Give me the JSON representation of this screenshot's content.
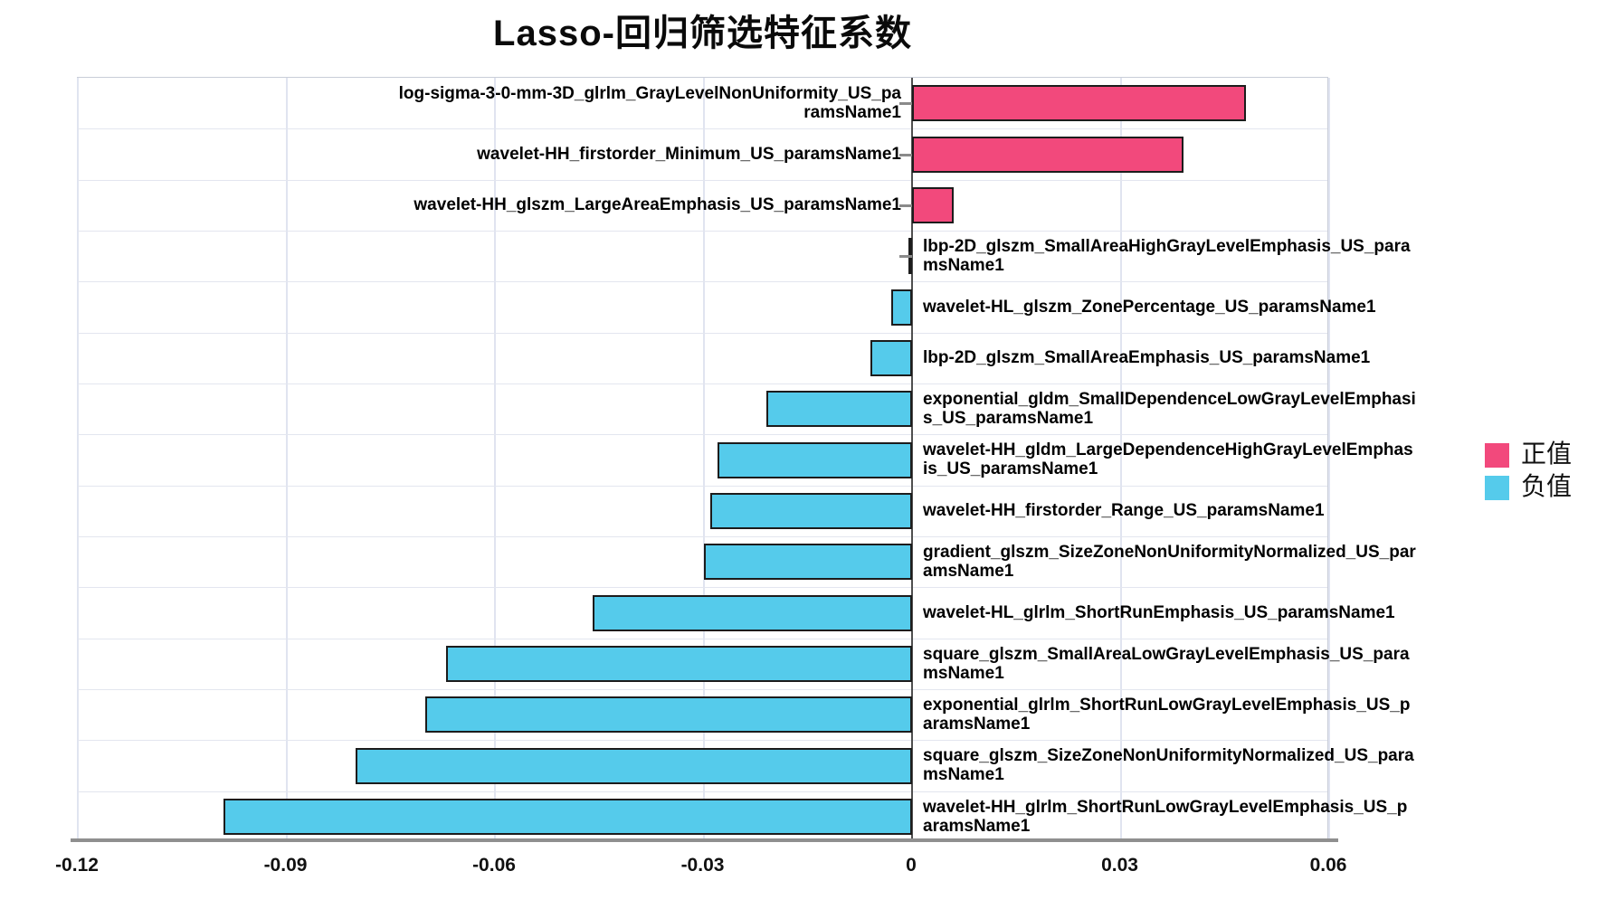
{
  "title": "Lasso-回归筛选特征系数",
  "colors": {
    "positive": "#F2497C",
    "negative": "#55CBEB",
    "bar_border": "#1c1c1c",
    "gridline": "#e0e4f0",
    "zero_line": "#4f4f4f",
    "axis_line": "#8f8f8f"
  },
  "legend": {
    "items": [
      {
        "label": "正值",
        "color": "#F2497C"
      },
      {
        "label": "负值",
        "color": "#55CBEB"
      }
    ]
  },
  "chart_data": {
    "type": "bar",
    "orientation": "horizontal",
    "title": "Lasso-回归筛选特征系数",
    "xlabel": "",
    "ylabel": "",
    "grid": true,
    "legend_position": "right",
    "xlim": [
      -0.12,
      0.06
    ],
    "xticks": [
      -0.12,
      -0.09,
      -0.06,
      -0.03,
      0,
      0.03,
      0.06
    ],
    "xtick_labels": [
      "-0.12",
      "-0.09",
      "-0.06",
      "-0.03",
      "0",
      "0.03",
      "0.06"
    ],
    "categories": [
      "log-sigma-3-0-mm-3D_glrlm_GrayLevelNonUniformity_US_paramsName1",
      "wavelet-HH_firstorder_Minimum_US_paramsName1",
      "wavelet-HH_glszm_LargeAreaEmphasis_US_paramsName1",
      "lbp-2D_glszm_SmallAreaHighGrayLevelEmphasis_US_paramsName1",
      "wavelet-HL_glszm_ZonePercentage_US_paramsName1",
      "lbp-2D_glszm_SmallAreaEmphasis_US_paramsName1",
      "exponential_gldm_SmallDependenceLowGrayLevelEmphasis_US_paramsName1",
      "wavelet-HH_gldm_LargeDependenceHighGrayLevelEmphasis_US_paramsName1",
      "wavelet-HH_firstorder_Range_US_paramsName1",
      "gradient_glszm_SizeZoneNonUniformityNormalized_US_paramsName1",
      "wavelet-HL_glrlm_ShortRunEmphasis_US_paramsName1",
      "square_glszm_SmallAreaLowGrayLevelEmphasis_US_paramsName1",
      "exponential_glrlm_ShortRunLowGrayLevelEmphasis_US_paramsName1",
      "square_glszm_SizeZoneNonUniformityNormalized_US_paramsName1",
      "wavelet-HH_glrlm_ShortRunLowGrayLevelEmphasis_US_paramsName1"
    ],
    "values": [
      0.048,
      0.039,
      0.006,
      -0.0005,
      -0.003,
      -0.006,
      -0.021,
      -0.028,
      -0.029,
      -0.03,
      -0.046,
      -0.067,
      -0.07,
      -0.08,
      -0.099
    ]
  }
}
